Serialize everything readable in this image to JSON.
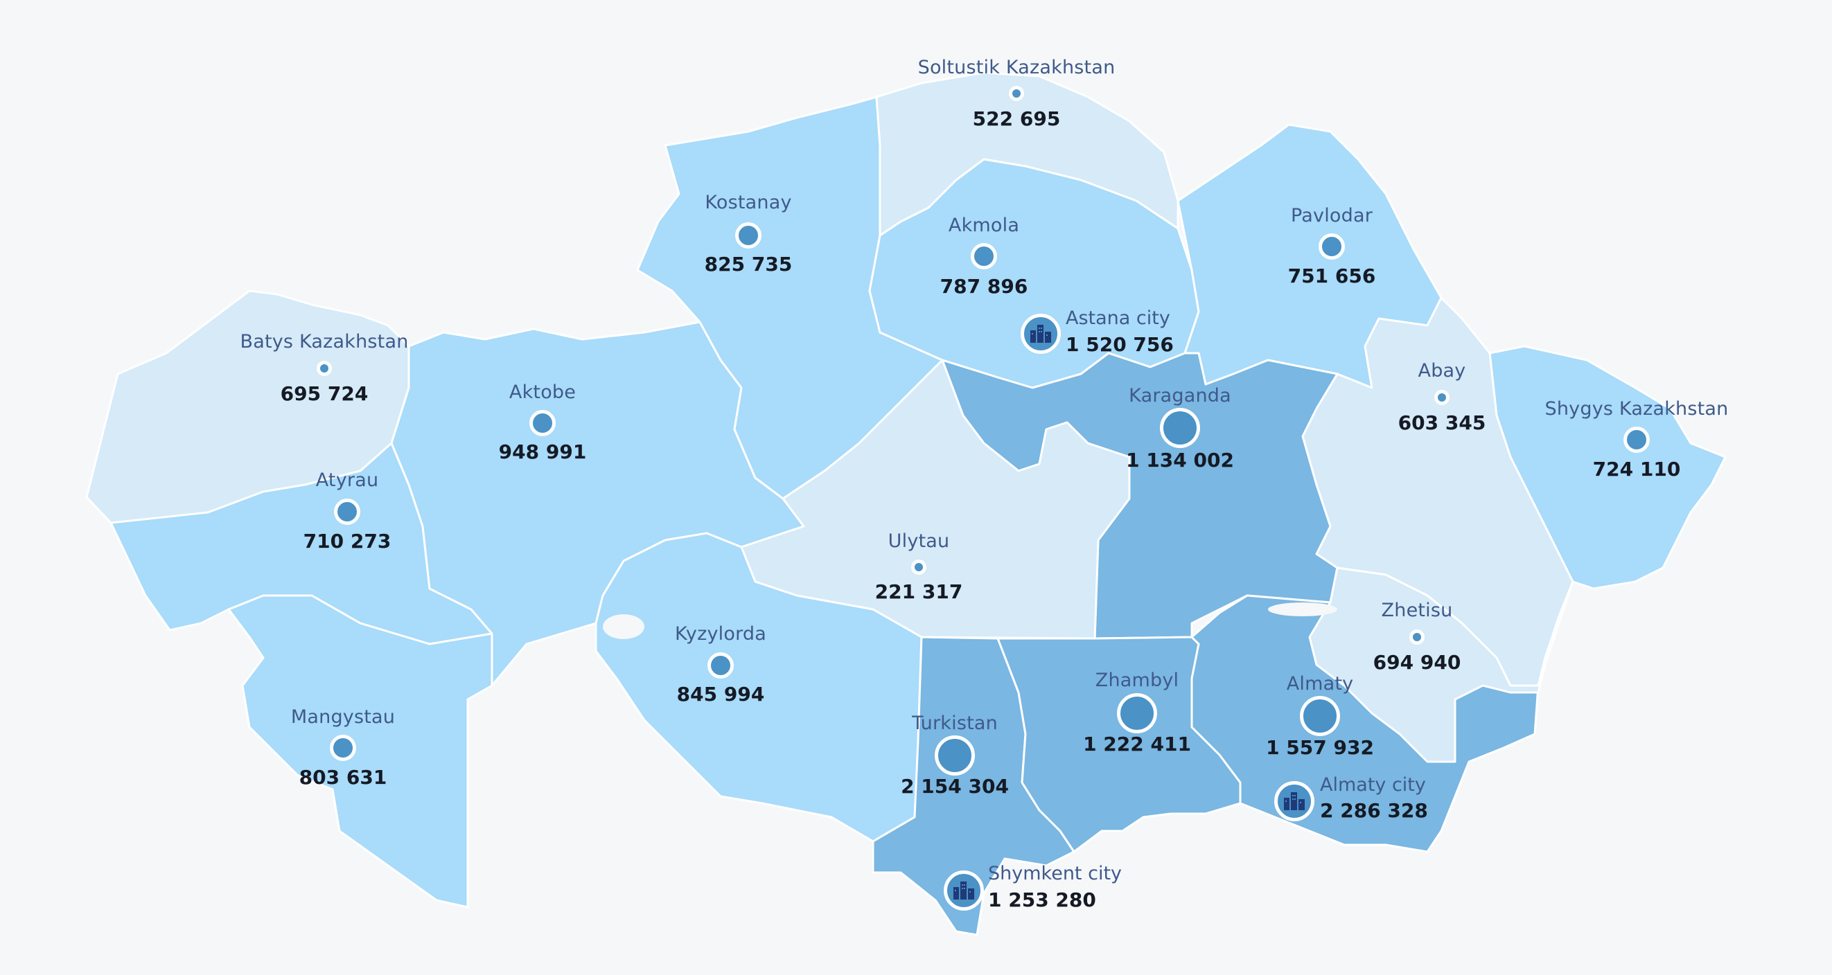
{
  "colors": {
    "background": "#f5f7f9",
    "level_light": "#d6eaf8",
    "level_medium": "#a9dbfa",
    "level_dark": "#7ab7e2",
    "marker": "#4b92c6",
    "name_text": "#3f5a8a",
    "value_text": "#151a24"
  },
  "icons": {
    "city": "city-buildings-icon"
  },
  "regions": [
    {
      "name": "Soltustik Kazakhstan",
      "population": "522 695",
      "level": "light"
    },
    {
      "name": "Kostanay",
      "population": "825 735",
      "level": "medium"
    },
    {
      "name": "Akmola",
      "population": "787 896",
      "level": "medium"
    },
    {
      "name": "Pavlodar",
      "population": "751 656",
      "level": "medium"
    },
    {
      "name": "Batys Kazakhstan",
      "population": "695 724",
      "level": "light"
    },
    {
      "name": "Aktobe",
      "population": "948 991",
      "level": "medium"
    },
    {
      "name": "Karaganda",
      "population": "1 134 002",
      "level": "dark"
    },
    {
      "name": "Abay",
      "population": "603 345",
      "level": "light"
    },
    {
      "name": "Shygys Kazakhstan",
      "population": "724 110",
      "level": "medium"
    },
    {
      "name": "Atyrau",
      "population": "710 273",
      "level": "medium"
    },
    {
      "name": "Ulytau",
      "population": "221 317",
      "level": "light"
    },
    {
      "name": "Zhetisu",
      "population": "694 940",
      "level": "light"
    },
    {
      "name": "Kyzylorda",
      "population": "845 994",
      "level": "medium"
    },
    {
      "name": "Zhambyl",
      "population": "1 222 411",
      "level": "dark"
    },
    {
      "name": "Almaty",
      "population": "1 557 932",
      "level": "dark"
    },
    {
      "name": "Turkistan",
      "population": "2 154 304",
      "level": "dark"
    },
    {
      "name": "Mangystau",
      "population": "803 631",
      "level": "medium"
    }
  ],
  "cities": [
    {
      "name": "Astana city",
      "population": "1 520 756"
    },
    {
      "name": "Almaty city",
      "population": "2 286 328"
    },
    {
      "name": "Shymkent city",
      "population": "1 253 280"
    }
  ]
}
